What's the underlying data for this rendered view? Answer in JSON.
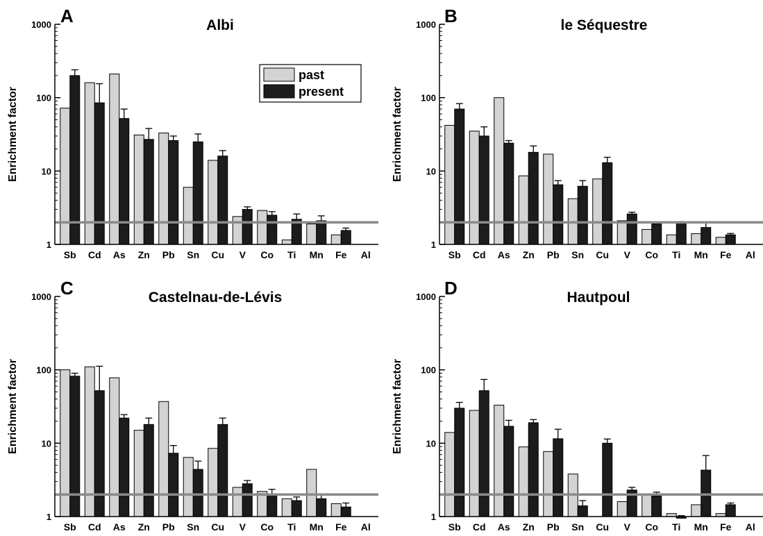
{
  "chart_data": [
    {
      "type": "bar",
      "panel": "A",
      "title": "Albi",
      "ylabel": "Enrichment factor",
      "yscale": "log",
      "ylim": [
        1,
        1000
      ],
      "yticks": [
        "1",
        "10",
        "100",
        "1000"
      ],
      "reference_line": 2,
      "categories": [
        "Sb",
        "Cd",
        "As",
        "Zn",
        "Pb",
        "Sn",
        "Cu",
        "V",
        "Co",
        "Ti",
        "Mn",
        "Fe",
        "Al"
      ],
      "legend": {
        "items": [
          "past",
          "present"
        ],
        "position": "top-right"
      },
      "series": [
        {
          "name": "past",
          "color": "#d3d3d3",
          "values": [
            72,
            160,
            210,
            31,
            33,
            6,
            14,
            2.4,
            2.9,
            1.15,
            1.9,
            1.35,
            null
          ],
          "errors": [
            null,
            null,
            null,
            null,
            null,
            null,
            null,
            null,
            null,
            null,
            null,
            null,
            null
          ]
        },
        {
          "name": "present",
          "color": "#1c1c1c",
          "values": [
            200,
            85,
            52,
            27,
            26,
            25,
            16,
            3.0,
            2.5,
            2.2,
            2.1,
            1.55,
            null
          ],
          "errors": [
            40,
            70,
            18,
            11,
            4,
            7,
            3,
            0.25,
            0.3,
            0.4,
            0.35,
            0.12,
            null
          ]
        }
      ]
    },
    {
      "type": "bar",
      "panel": "B",
      "title": "le Séquestre",
      "ylabel": "Enrichment factor",
      "yscale": "log",
      "ylim": [
        1,
        1000
      ],
      "yticks": [
        "1",
        "10",
        "100",
        "1000"
      ],
      "reference_line": 2,
      "categories": [
        "Sb",
        "Cd",
        "As",
        "Zn",
        "Pb",
        "Sn",
        "Cu",
        "V",
        "Co",
        "Ti",
        "Mn",
        "Fe",
        "Al"
      ],
      "series": [
        {
          "name": "past",
          "color": "#d3d3d3",
          "values": [
            42,
            35,
            100,
            8.6,
            17,
            4.2,
            7.8,
            2.1,
            1.6,
            1.35,
            1.4,
            1.25,
            null
          ],
          "errors": [
            null,
            null,
            null,
            null,
            null,
            null,
            null,
            null,
            null,
            null,
            null,
            null,
            null
          ]
        },
        {
          "name": "present",
          "color": "#1c1c1c",
          "values": [
            70,
            30,
            24,
            18,
            6.5,
            6.2,
            13,
            2.6,
            1.9,
            2.0,
            1.7,
            1.35,
            null
          ],
          "errors": [
            13,
            10,
            2,
            4,
            0.9,
            1.2,
            2.4,
            0.15,
            0.08,
            0.05,
            0.25,
            0.06,
            null
          ]
        }
      ]
    },
    {
      "type": "bar",
      "panel": "C",
      "title": "Castelnau-de-Lévis",
      "ylabel": "Enrichment factor",
      "yscale": "log",
      "ylim": [
        1,
        1000
      ],
      "yticks": [
        "1",
        "10",
        "100",
        "1000"
      ],
      "reference_line": 2,
      "categories": [
        "Sb",
        "Cd",
        "As",
        "Zn",
        "Pb",
        "Sn",
        "Cu",
        "V",
        "Co",
        "Ti",
        "Mn",
        "Fe",
        "Al"
      ],
      "series": [
        {
          "name": "past",
          "color": "#d3d3d3",
          "values": [
            100,
            110,
            78,
            15,
            37,
            6.4,
            8.5,
            2.5,
            2.2,
            1.75,
            4.4,
            1.5,
            null
          ],
          "errors": [
            null,
            null,
            null,
            null,
            null,
            null,
            null,
            null,
            null,
            null,
            null,
            null,
            null
          ]
        },
        {
          "name": "present",
          "color": "#1c1c1c",
          "values": [
            82,
            52,
            22,
            18,
            7.3,
            4.4,
            18,
            2.8,
            2.0,
            1.65,
            1.75,
            1.35,
            null
          ],
          "errors": [
            8,
            60,
            2.5,
            4,
            2,
            1.3,
            4,
            0.3,
            0.35,
            0.2,
            0.2,
            0.18,
            null
          ]
        }
      ]
    },
    {
      "type": "bar",
      "panel": "D",
      "title": "Hautpoul",
      "ylabel": "Enrichment factor",
      "yscale": "log",
      "ylim": [
        1,
        1000
      ],
      "yticks": [
        "1",
        "10",
        "100",
        "1000"
      ],
      "reference_line": 2,
      "categories": [
        "Sb",
        "Cd",
        "As",
        "Zn",
        "Pb",
        "Sn",
        "Cu",
        "V",
        "Co",
        "Ti",
        "Mn",
        "Fe",
        "Al"
      ],
      "series": [
        {
          "name": "past",
          "color": "#d3d3d3",
          "values": [
            14,
            28,
            33,
            8.9,
            7.7,
            3.8,
            null,
            1.6,
            2.0,
            1.1,
            1.45,
            1.1,
            null
          ],
          "errors": [
            null,
            null,
            null,
            null,
            null,
            null,
            null,
            null,
            null,
            null,
            null,
            null,
            null
          ]
        },
        {
          "name": "present",
          "color": "#1c1c1c",
          "values": [
            30,
            52,
            17,
            19,
            11.5,
            1.4,
            10,
            2.3,
            1.9,
            0.95,
            4.3,
            1.45,
            null
          ],
          "errors": [
            6,
            22,
            3.5,
            2,
            4,
            0.25,
            1.4,
            0.2,
            0.25,
            0.08,
            2.5,
            0.08,
            null
          ]
        }
      ]
    }
  ]
}
